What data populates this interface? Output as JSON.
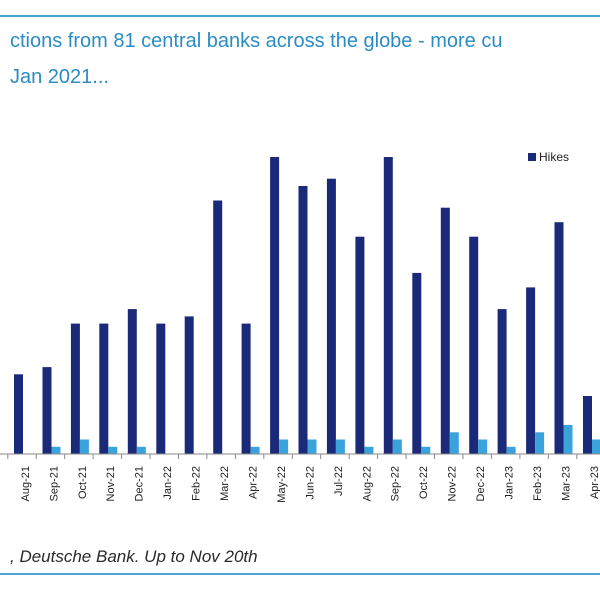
{
  "header": {
    "title_line_1": "ctions from 81 central banks across the globe - more cu",
    "title_line_2": "Jan 2021..."
  },
  "footer": {
    "source": ", Deutsche Bank. Up to Nov 20th"
  },
  "colors": {
    "hikes": "#1b2a78",
    "second_series": "#3ba3dc",
    "rule": "#4ea3d1",
    "title": "#2b8cc4"
  },
  "chart_data": {
    "type": "bar",
    "title": "",
    "xlabel": "",
    "ylabel": "",
    "ylim": [
      0,
      41
    ],
    "grid": false,
    "legend": "top-right",
    "categories": [
      "Aug-21",
      "Sep-21",
      "Oct-21",
      "Nov-21",
      "Dec-21",
      "Jan-22",
      "Feb-22",
      "Mar-22",
      "Apr-22",
      "May-22",
      "Jun-22",
      "Jul-22",
      "Aug-22",
      "Sep-22",
      "Oct-22",
      "Nov-22",
      "Dec-22",
      "Jan-23",
      "Feb-23",
      "Mar-23",
      "Apr-23"
    ],
    "series": [
      {
        "name": "Hikes",
        "values": [
          11,
          12,
          18,
          18,
          20,
          18,
          19,
          35,
          18,
          41,
          37,
          38,
          30,
          41,
          25,
          34,
          30,
          20,
          23,
          32,
          8
        ]
      },
      {
        "values": [
          0,
          1,
          2,
          1,
          1,
          0,
          0,
          0,
          1,
          2,
          2,
          2,
          1,
          2,
          1,
          3,
          2,
          1,
          3,
          4,
          2
        ]
      }
    ]
  }
}
